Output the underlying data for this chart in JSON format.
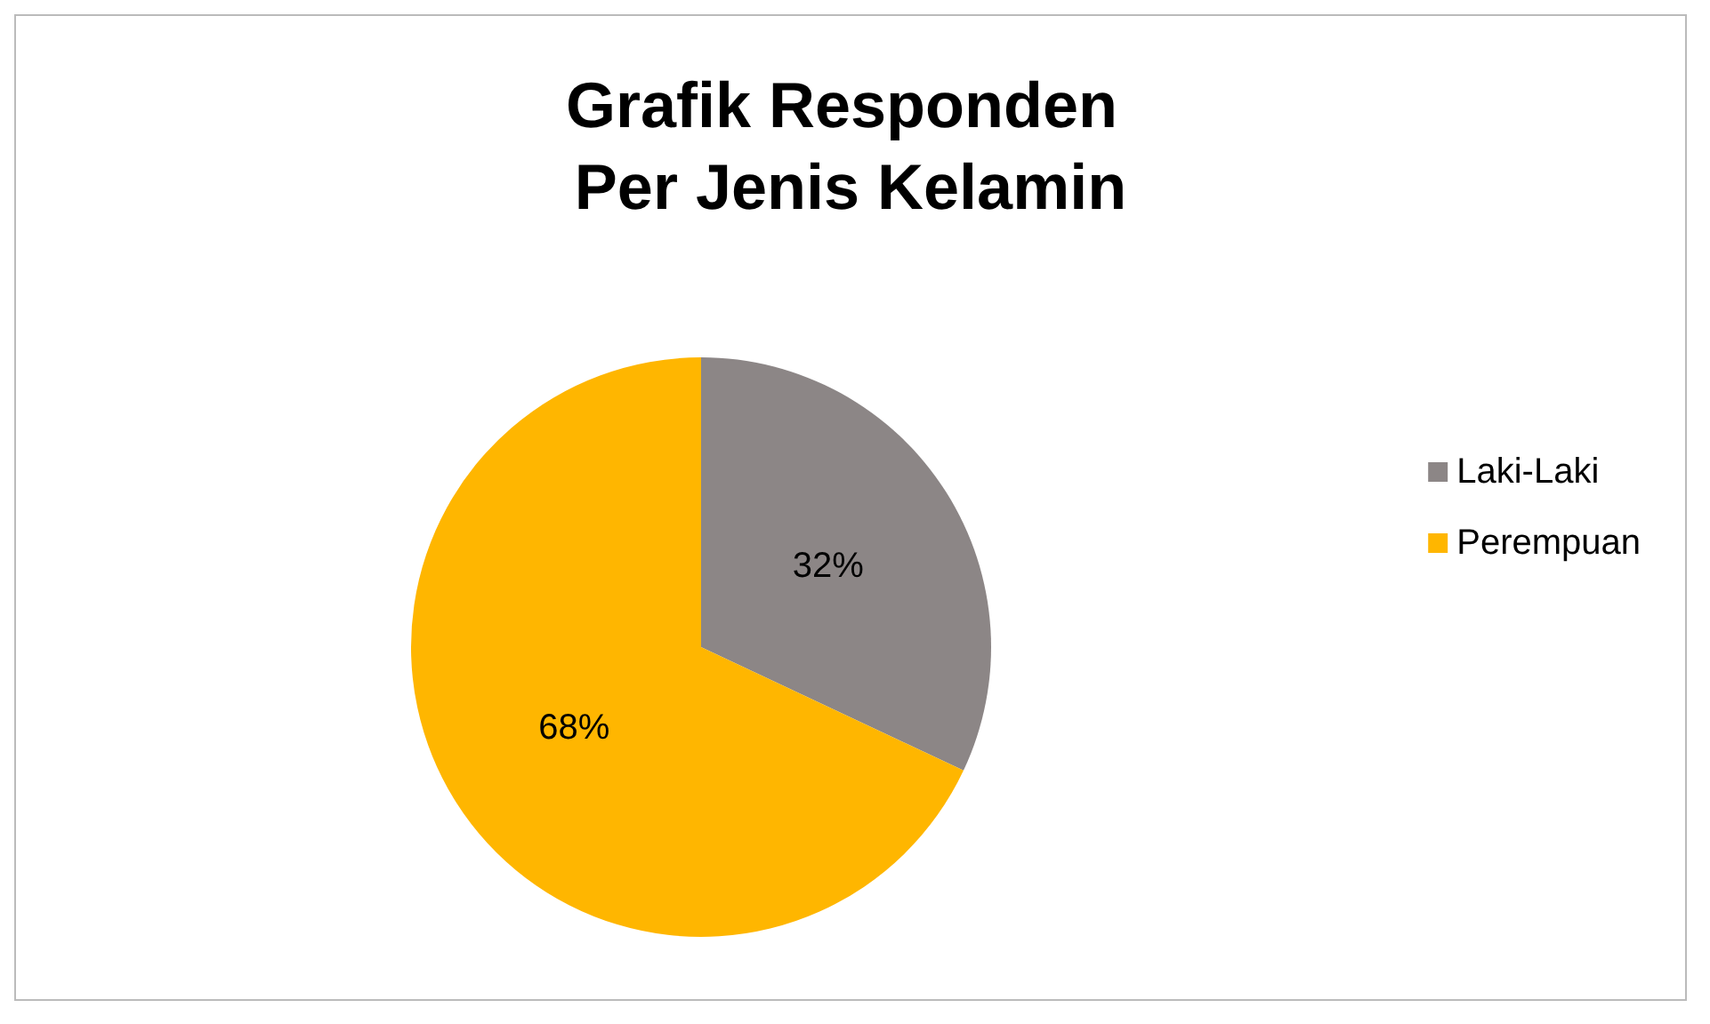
{
  "chart_data": {
    "type": "pie",
    "title": "Grafik Responden Per Jenis Kelamin",
    "categories": [
      "Laki-Laki",
      "Perempuan"
    ],
    "values": [
      32,
      68
    ],
    "colors": [
      "#8c8686",
      "#ffb600"
    ],
    "value_labels": [
      "32%",
      "68%"
    ],
    "legend": "right"
  }
}
